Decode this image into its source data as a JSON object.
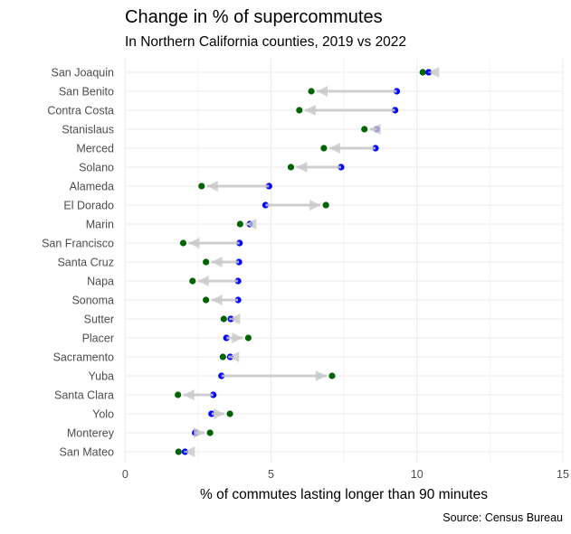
{
  "chart_data": {
    "type": "dumbbell-arrow",
    "title": "Change in % of supercommutes",
    "subtitle": "In Northern California counties, 2019 vs 2022",
    "xlabel": "% of commutes lasting longer than 90 minutes",
    "ylabel": "",
    "caption": "Source: Census Bureau",
    "xlim": [
      0,
      15
    ],
    "xticks": [
      "0",
      "5",
      "10",
      "15"
    ],
    "grid": true,
    "legend": "none",
    "colors": {
      "2019": "#0000ff",
      "2022": "#006400",
      "arrow": "#c8c8c8"
    },
    "categories": [
      "San Joaquin",
      "San Benito",
      "Contra Costa",
      "Stanislaus",
      "Merced",
      "Solano",
      "Alameda",
      "El Dorado",
      "Marin",
      "San Francisco",
      "Santa Cruz",
      "Napa",
      "Sonoma",
      "Sutter",
      "Placer",
      "Sacramento",
      "Yuba",
      "Santa Clara",
      "Yolo",
      "Monterey",
      "San Mateo"
    ],
    "series": [
      {
        "key": "2019",
        "values": [
          10.4,
          9.31,
          9.25,
          8.62,
          8.58,
          7.4,
          4.93,
          4.81,
          4.27,
          3.92,
          3.9,
          3.87,
          3.87,
          3.62,
          3.47,
          3.6,
          3.3,
          3.02,
          2.96,
          2.4,
          2.05
        ]
      },
      {
        "key": "2022",
        "values": [
          10.2,
          6.38,
          5.97,
          8.2,
          6.81,
          5.68,
          2.62,
          6.88,
          3.94,
          1.99,
          2.77,
          2.31,
          2.77,
          3.38,
          4.22,
          3.35,
          7.09,
          1.81,
          3.59,
          2.91,
          1.83
        ]
      }
    ]
  }
}
